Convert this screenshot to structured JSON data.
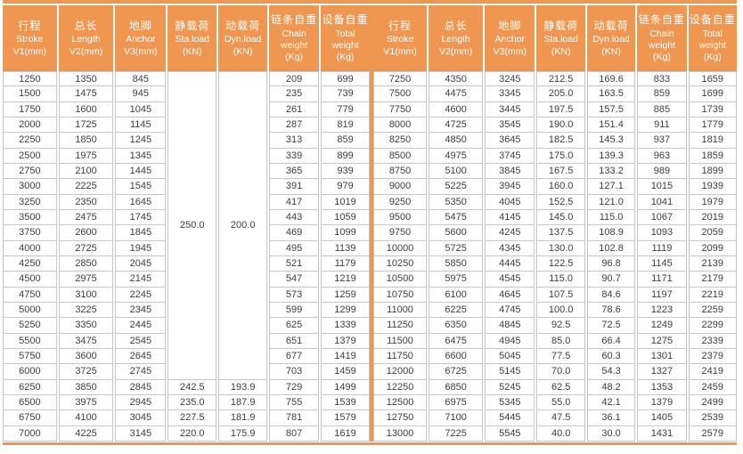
{
  "colors": {
    "accent": "#EF9650",
    "grid_line": "#C6C6C6",
    "data_text": "#3D3D3D",
    "header_text": "#FFFFFF"
  },
  "columns": [
    {
      "key": "stroke",
      "lines": [
        "行程",
        "Stroke",
        "V1(mm)"
      ]
    },
    {
      "key": "length",
      "lines": [
        "总长",
        "Length",
        "V2(mm)"
      ]
    },
    {
      "key": "anchor",
      "lines": [
        "地脚",
        "Anchor",
        "V3(mm)"
      ]
    },
    {
      "key": "sta_load",
      "lines": [
        "静载荷",
        "Sta.load",
        "(KN)"
      ]
    },
    {
      "key": "dyn_load",
      "lines": [
        "动载荷",
        "Dyn.load",
        "(KN)"
      ]
    },
    {
      "key": "chain_weight",
      "lines": [
        "链条自重",
        "Chain",
        "weight",
        "(Kg)"
      ]
    },
    {
      "key": "total_weight",
      "lines": [
        "设备自重",
        "Total",
        "weight",
        "(Kg)"
      ]
    }
  ],
  "left_half": {
    "merged_load": {
      "sta": "250.0",
      "dyn": "200.0",
      "span": 20
    },
    "rows": [
      [
        "1250",
        "1350",
        "845",
        null,
        null,
        "209",
        "699"
      ],
      [
        "1500",
        "1475",
        "945",
        null,
        null,
        "235",
        "739"
      ],
      [
        "1750",
        "1600",
        "1045",
        null,
        null,
        "261",
        "779"
      ],
      [
        "2000",
        "1725",
        "1145",
        null,
        null,
        "287",
        "819"
      ],
      [
        "2250",
        "1850",
        "1245",
        null,
        null,
        "313",
        "859"
      ],
      [
        "2500",
        "1975",
        "1345",
        null,
        null,
        "339",
        "899"
      ],
      [
        "2750",
        "2100",
        "1445",
        null,
        null,
        "365",
        "939"
      ],
      [
        "3000",
        "2225",
        "1545",
        null,
        null,
        "391",
        "979"
      ],
      [
        "3250",
        "2350",
        "1645",
        null,
        null,
        "417",
        "1019"
      ],
      [
        "3500",
        "2475",
        "1745",
        null,
        null,
        "443",
        "1059"
      ],
      [
        "3750",
        "2600",
        "1845",
        null,
        null,
        "469",
        "1099"
      ],
      [
        "4000",
        "2725",
        "1945",
        null,
        null,
        "495",
        "1139"
      ],
      [
        "4250",
        "2850",
        "2045",
        null,
        null,
        "521",
        "1179"
      ],
      [
        "4500",
        "2975",
        "2145",
        null,
        null,
        "547",
        "1219"
      ],
      [
        "4750",
        "3100",
        "2245",
        null,
        null,
        "573",
        "1259"
      ],
      [
        "5000",
        "3225",
        "2345",
        null,
        null,
        "599",
        "1299"
      ],
      [
        "5250",
        "3350",
        "2445",
        null,
        null,
        "625",
        "1339"
      ],
      [
        "5500",
        "3475",
        "2545",
        null,
        null,
        "651",
        "1379"
      ],
      [
        "5750",
        "3600",
        "2645",
        null,
        null,
        "677",
        "1419"
      ],
      [
        "6000",
        "3725",
        "2745",
        null,
        null,
        "703",
        "1459"
      ],
      [
        "6250",
        "3850",
        "2845",
        "242.5",
        "193.9",
        "729",
        "1499"
      ],
      [
        "6500",
        "3975",
        "2945",
        "235.0",
        "187.9",
        "755",
        "1539"
      ],
      [
        "6750",
        "4100",
        "3045",
        "227.5",
        "181.9",
        "781",
        "1579"
      ],
      [
        "7000",
        "4225",
        "3145",
        "220.0",
        "175.9",
        "807",
        "1619"
      ]
    ]
  },
  "right_half": {
    "rows": [
      [
        "7250",
        "4350",
        "3245",
        "212.5",
        "169.6",
        "833",
        "1659"
      ],
      [
        "7500",
        "4475",
        "3345",
        "205.0",
        "163.5",
        "859",
        "1699"
      ],
      [
        "7750",
        "4600",
        "3445",
        "197.5",
        "157.5",
        "885",
        "1739"
      ],
      [
        "8000",
        "4725",
        "3545",
        "190.0",
        "151.4",
        "911",
        "1779"
      ],
      [
        "8250",
        "4850",
        "3645",
        "182.5",
        "145.3",
        "937",
        "1819"
      ],
      [
        "8500",
        "4975",
        "3745",
        "175.0",
        "139.3",
        "963",
        "1859"
      ],
      [
        "8750",
        "5100",
        "3845",
        "167.5",
        "133.2",
        "989",
        "1899"
      ],
      [
        "9000",
        "5225",
        "3945",
        "160.0",
        "127.1",
        "1015",
        "1939"
      ],
      [
        "9250",
        "5350",
        "4045",
        "152.5",
        "121.0",
        "1041",
        "1979"
      ],
      [
        "9500",
        "5475",
        "4145",
        "145.0",
        "115.0",
        "1067",
        "2019"
      ],
      [
        "9750",
        "5600",
        "4245",
        "137.5",
        "108.9",
        "1093",
        "2059"
      ],
      [
        "10000",
        "5725",
        "4345",
        "130.0",
        "102.8",
        "1119",
        "2099"
      ],
      [
        "10250",
        "5850",
        "4445",
        "122.5",
        "96.8",
        "1145",
        "2139"
      ],
      [
        "10500",
        "5975",
        "4545",
        "115.0",
        "90.7",
        "1171",
        "2179"
      ],
      [
        "10750",
        "6100",
        "4645",
        "107.5",
        "84.6",
        "1197",
        "2219"
      ],
      [
        "11000",
        "6225",
        "4745",
        "100.0",
        "78.6",
        "1223",
        "2259"
      ],
      [
        "11250",
        "6350",
        "4845",
        "92.5",
        "72.5",
        "1249",
        "2299"
      ],
      [
        "11500",
        "6475",
        "4945",
        "85.0",
        "66.4",
        "1275",
        "2339"
      ],
      [
        "11750",
        "6600",
        "5045",
        "77.5",
        "60.3",
        "1301",
        "2379"
      ],
      [
        "12000",
        "6725",
        "5145",
        "70.0",
        "54.3",
        "1327",
        "2419"
      ],
      [
        "12250",
        "6850",
        "5245",
        "62.5",
        "48.2",
        "1353",
        "2459"
      ],
      [
        "12500",
        "6975",
        "5345",
        "55.0",
        "42.1",
        "1379",
        "2499"
      ],
      [
        "12750",
        "7100",
        "5445",
        "47.5",
        "36.1",
        "1405",
        "2539"
      ],
      [
        "13000",
        "7225",
        "5545",
        "40.0",
        "30.0",
        "1431",
        "2579"
      ]
    ]
  }
}
